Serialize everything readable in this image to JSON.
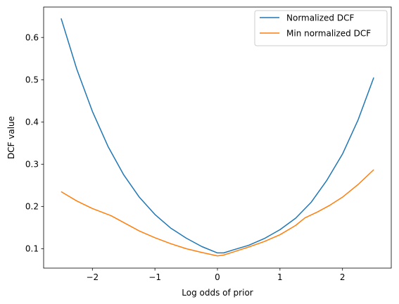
{
  "chart_data": {
    "type": "line",
    "title": "",
    "xlabel": "Log odds of prior",
    "ylabel": "DCF value",
    "xlim": [
      -2.78,
      2.78
    ],
    "ylim": [
      0.054,
      0.672
    ],
    "xticks": [
      -2,
      -1,
      0,
      1,
      2
    ],
    "yticks": [
      0.1,
      0.2,
      0.3,
      0.4,
      0.5,
      0.6
    ],
    "xtick_labels": [
      "−2",
      "−1",
      "0",
      "1",
      "2"
    ],
    "ytick_labels": [
      "0.1",
      "0.2",
      "0.3",
      "0.4",
      "0.5",
      "0.6"
    ],
    "grid": false,
    "legend_position": "top-right",
    "series": [
      {
        "name": "Normalized DCF",
        "color": "#1f77b4",
        "x": [
          -2.5,
          -2.25,
          -2.0,
          -1.75,
          -1.5,
          -1.25,
          -1.0,
          -0.75,
          -0.5,
          -0.25,
          0.0,
          0.1,
          0.25,
          0.5,
          0.75,
          1.0,
          1.25,
          1.5,
          1.75,
          2.0,
          2.25,
          2.5
        ],
        "y": [
          0.645,
          0.525,
          0.425,
          0.342,
          0.275,
          0.222,
          0.181,
          0.149,
          0.125,
          0.105,
          0.09,
          0.09,
          0.097,
          0.108,
          0.124,
          0.145,
          0.172,
          0.21,
          0.262,
          0.324,
          0.405,
          0.505
        ]
      },
      {
        "name": "Min normalized DCF",
        "color": "#ff7f0e",
        "x": [
          -2.5,
          -2.25,
          -2.0,
          -1.7,
          -1.5,
          -1.25,
          -1.0,
          -0.75,
          -0.5,
          -0.25,
          0.0,
          0.1,
          0.25,
          0.5,
          0.75,
          1.0,
          1.25,
          1.4,
          1.6,
          1.8,
          2.0,
          2.25,
          2.5
        ],
        "y": [
          0.235,
          0.213,
          0.195,
          0.178,
          0.162,
          0.142,
          0.126,
          0.112,
          0.1,
          0.091,
          0.083,
          0.085,
          0.092,
          0.104,
          0.117,
          0.133,
          0.155,
          0.173,
          0.187,
          0.203,
          0.222,
          0.252,
          0.287
        ]
      }
    ]
  }
}
